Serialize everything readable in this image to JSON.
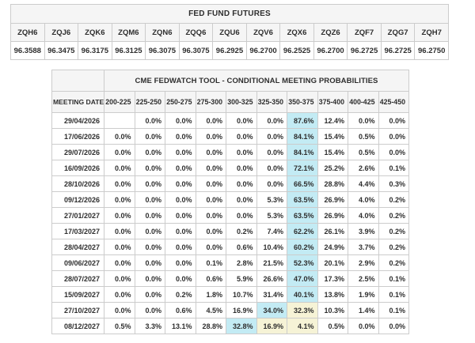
{
  "colors": {
    "highlight_primary": "#c3ebf4",
    "highlight_secondary": "#f6f3d6",
    "header_bg": "#f5f5f5",
    "border": "#cccccc",
    "text": "#2e2e2e"
  },
  "futures": {
    "title": "FED FUND FUTURES",
    "columns": [
      "ZQH6",
      "ZQJ6",
      "ZQK6",
      "ZQM6",
      "ZQN6",
      "ZQQ6",
      "ZQU6",
      "ZQV6",
      "ZQX6",
      "ZQZ6",
      "ZQF7",
      "ZQG7",
      "ZQH7"
    ],
    "values": [
      "96.3588",
      "96.3475",
      "96.3175",
      "96.3125",
      "96.3075",
      "96.3075",
      "96.2925",
      "96.2700",
      "96.2525",
      "96.2700",
      "96.2725",
      "96.2725",
      "96.2750"
    ]
  },
  "fedwatch": {
    "title": "CME FEDWATCH TOOL - CONDITIONAL MEETING PROBABILITIES",
    "date_header": "MEETING DATE",
    "rate_columns": [
      "200-225",
      "225-250",
      "250-275",
      "275-300",
      "300-325",
      "325-350",
      "350-375",
      "375-400",
      "400-425",
      "425-450"
    ],
    "rows": [
      {
        "date": "29/04/2026",
        "values": [
          "",
          "0.0%",
          "0.0%",
          "0.0%",
          "0.0%",
          "0.0%",
          "87.6%",
          "12.4%",
          "0.0%",
          "0.0%"
        ],
        "cyan": 6,
        "yellow": []
      },
      {
        "date": "17/06/2026",
        "values": [
          "0.0%",
          "0.0%",
          "0.0%",
          "0.0%",
          "0.0%",
          "0.0%",
          "84.1%",
          "15.4%",
          "0.5%",
          "0.0%"
        ],
        "cyan": 6,
        "yellow": []
      },
      {
        "date": "29/07/2026",
        "values": [
          "0.0%",
          "0.0%",
          "0.0%",
          "0.0%",
          "0.0%",
          "0.0%",
          "84.1%",
          "15.4%",
          "0.5%",
          "0.0%"
        ],
        "cyan": 6,
        "yellow": []
      },
      {
        "date": "16/09/2026",
        "values": [
          "0.0%",
          "0.0%",
          "0.0%",
          "0.0%",
          "0.0%",
          "0.0%",
          "72.1%",
          "25.2%",
          "2.6%",
          "0.1%"
        ],
        "cyan": 6,
        "yellow": []
      },
      {
        "date": "28/10/2026",
        "values": [
          "0.0%",
          "0.0%",
          "0.0%",
          "0.0%",
          "0.0%",
          "0.0%",
          "66.5%",
          "28.8%",
          "4.4%",
          "0.3%"
        ],
        "cyan": 6,
        "yellow": []
      },
      {
        "date": "09/12/2026",
        "values": [
          "0.0%",
          "0.0%",
          "0.0%",
          "0.0%",
          "0.0%",
          "5.3%",
          "63.5%",
          "26.9%",
          "4.0%",
          "0.2%"
        ],
        "cyan": 6,
        "yellow": []
      },
      {
        "date": "27/01/2027",
        "values": [
          "0.0%",
          "0.0%",
          "0.0%",
          "0.0%",
          "0.0%",
          "5.3%",
          "63.5%",
          "26.9%",
          "4.0%",
          "0.2%"
        ],
        "cyan": 6,
        "yellow": []
      },
      {
        "date": "17/03/2027",
        "values": [
          "0.0%",
          "0.0%",
          "0.0%",
          "0.0%",
          "0.2%",
          "7.4%",
          "62.2%",
          "26.1%",
          "3.9%",
          "0.2%"
        ],
        "cyan": 6,
        "yellow": []
      },
      {
        "date": "28/04/2027",
        "values": [
          "0.0%",
          "0.0%",
          "0.0%",
          "0.0%",
          "0.6%",
          "10.4%",
          "60.2%",
          "24.9%",
          "3.7%",
          "0.2%"
        ],
        "cyan": 6,
        "yellow": []
      },
      {
        "date": "09/06/2027",
        "values": [
          "0.0%",
          "0.0%",
          "0.0%",
          "0.1%",
          "2.8%",
          "21.5%",
          "52.3%",
          "20.1%",
          "2.9%",
          "0.2%"
        ],
        "cyan": 6,
        "yellow": []
      },
      {
        "date": "28/07/2027",
        "values": [
          "0.0%",
          "0.0%",
          "0.0%",
          "0.6%",
          "5.9%",
          "26.6%",
          "47.0%",
          "17.3%",
          "2.5%",
          "0.1%"
        ],
        "cyan": 6,
        "yellow": []
      },
      {
        "date": "15/09/2027",
        "values": [
          "0.0%",
          "0.0%",
          "0.2%",
          "1.8%",
          "10.7%",
          "31.4%",
          "40.1%",
          "13.8%",
          "1.9%",
          "0.1%"
        ],
        "cyan": 6,
        "yellow": []
      },
      {
        "date": "27/10/2027",
        "values": [
          "0.0%",
          "0.0%",
          "0.6%",
          "4.5%",
          "16.9%",
          "34.0%",
          "32.3%",
          "10.3%",
          "1.4%",
          "0.1%"
        ],
        "cyan": 5,
        "yellow": [
          6
        ]
      },
      {
        "date": "08/12/2027",
        "values": [
          "0.5%",
          "3.3%",
          "13.1%",
          "28.8%",
          "32.8%",
          "16.9%",
          "4.1%",
          "0.5%",
          "0.0%",
          "0.0%"
        ],
        "cyan": 4,
        "yellow": [
          5,
          6
        ]
      }
    ]
  }
}
